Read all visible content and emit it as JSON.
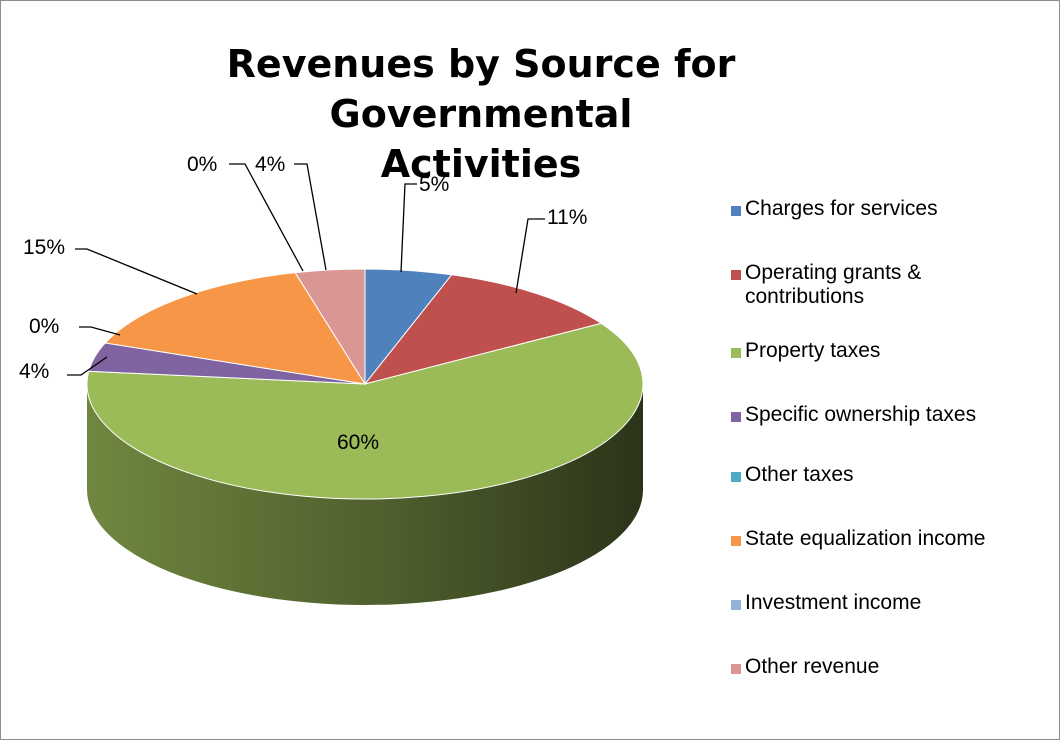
{
  "chart_data": {
    "type": "pie",
    "title": "Revenues by Source for Governmental Activities",
    "title_lines": [
      "Revenues by Source for Governmental",
      "Activities"
    ],
    "legend_position": "right",
    "slices": [
      {
        "label": "Charges for services",
        "value": 5,
        "display": "5%",
        "color": "#4f81bd"
      },
      {
        "label": "Operating grants & contributions",
        "value": 11,
        "display": "11%",
        "color": "#c0504d",
        "legend_lines": [
          "Operating grants &",
          "contributions"
        ]
      },
      {
        "label": "Property taxes",
        "value": 60,
        "display": "60%",
        "color": "#9bbb59"
      },
      {
        "label": "Specific ownership taxes",
        "value": 4,
        "display": "4%",
        "color": "#8064a2"
      },
      {
        "label": "Other taxes",
        "value": 0,
        "display": "0%",
        "color": "#4bacc6"
      },
      {
        "label": "State equalization income",
        "value": 15,
        "display": "15%",
        "color": "#f79646"
      },
      {
        "label": "Investment income",
        "value": 0,
        "display": "0%",
        "color": "#95b3d7"
      },
      {
        "label": "Other revenue",
        "value": 4,
        "display": "4%",
        "color": "#d99694"
      }
    ]
  }
}
